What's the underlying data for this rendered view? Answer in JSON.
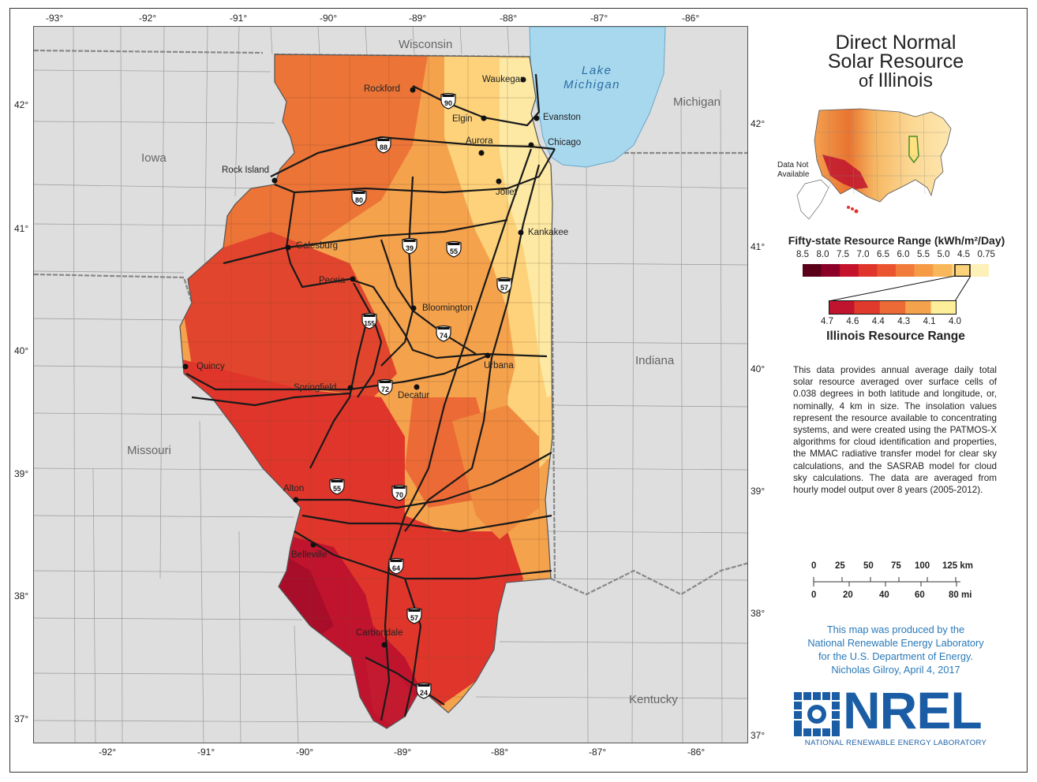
{
  "title": {
    "line1": "Direct Normal",
    "line2": "Solar Resource",
    "line3_prefix": "of",
    "line3_state": "Illinois"
  },
  "top_ticks": [
    "-93°",
    "-92°",
    "-91°",
    "-90°",
    "-89°",
    "-88°",
    "-87°",
    "-86°"
  ],
  "bottom_ticks": [
    "-92°",
    "-91°",
    "-90°",
    "-89°",
    "-88°",
    "-87°",
    "-86°"
  ],
  "left_ticks": [
    "42°",
    "41°",
    "40°",
    "39°",
    "38°",
    "37°"
  ],
  "right_ticks": [
    "42°",
    "41°",
    "40°",
    "39°",
    "38°",
    "37°"
  ],
  "states": [
    "Wisconsin",
    "Iowa",
    "Missouri",
    "Indiana",
    "Michigan",
    "Kentucky"
  ],
  "lake": {
    "line1": "Lake",
    "line2": "Michigan"
  },
  "cities": [
    "Rockford",
    "Waukegan",
    "Evanston",
    "Elgin",
    "Aurora",
    "Chicago",
    "Rock Island",
    "Joliet",
    "Kankakee",
    "Galesburg",
    "Peoria",
    "Bloomington",
    "Urbana",
    "Quincy",
    "Springfield",
    "Decatur",
    "Alton",
    "Belleville",
    "Carbondale"
  ],
  "interstates": [
    "90",
    "88",
    "80",
    "39",
    "55",
    "57",
    "155",
    "74",
    "72",
    "55",
    "70",
    "64",
    "57",
    "24"
  ],
  "inset": {
    "no_data_line1": "Data Not",
    "no_data_line2": "Available"
  },
  "fifty_state_legend": {
    "title": "Fifty-state Resource Range (kWh/m²/Day)",
    "labels": [
      "8.5",
      "8.0",
      "7.5",
      "7.0",
      "6.5",
      "6.0",
      "5.5",
      "5.0",
      "4.5",
      "0.75"
    ],
    "colors": [
      "#5a0018",
      "#8c0027",
      "#c5132b",
      "#e0352b",
      "#ea5530",
      "#f07b3a",
      "#f59b45",
      "#f8b75a",
      "#fbd279",
      "#fdf0b8"
    ]
  },
  "illinois_legend": {
    "title": "Illinois Resource Range",
    "labels": [
      "4.7",
      "4.6",
      "4.4",
      "4.3",
      "4.1",
      "4.0"
    ],
    "colors": [
      "#c0142e",
      "#e03a2c",
      "#ec6a35",
      "#f5a24c",
      "#fdee9a"
    ]
  },
  "description": "This data provides annual average daily total solar resource averaged over surface cells of 0.038 degrees in both latitude and longitude, or, nominally, 4 km in size. The insolation values represent the resource available to concentrating systems, and were created using the PATMOS-X algorithms for cloud identification and properties, the MMAC radiative transfer model for clear sky calculations, and the SASRAB model for cloud sky calculations. The data are averaged from hourly model output over 8 years (2005-2012).",
  "scale": {
    "km": [
      "0",
      "25",
      "50",
      "75",
      "100",
      "125 km"
    ],
    "mi": [
      "0",
      "20",
      "40",
      "60",
      "80 mi"
    ]
  },
  "credit": [
    "This map was produced by the",
    "National Renewable Energy Laboratory",
    "for the U.S. Department of Energy.",
    "Nicholas Gilroy,   April 4, 2017"
  ],
  "logo": {
    "text": "NREL",
    "subtitle": "NATIONAL RENEWABLE ENERGY LABORATORY"
  }
}
